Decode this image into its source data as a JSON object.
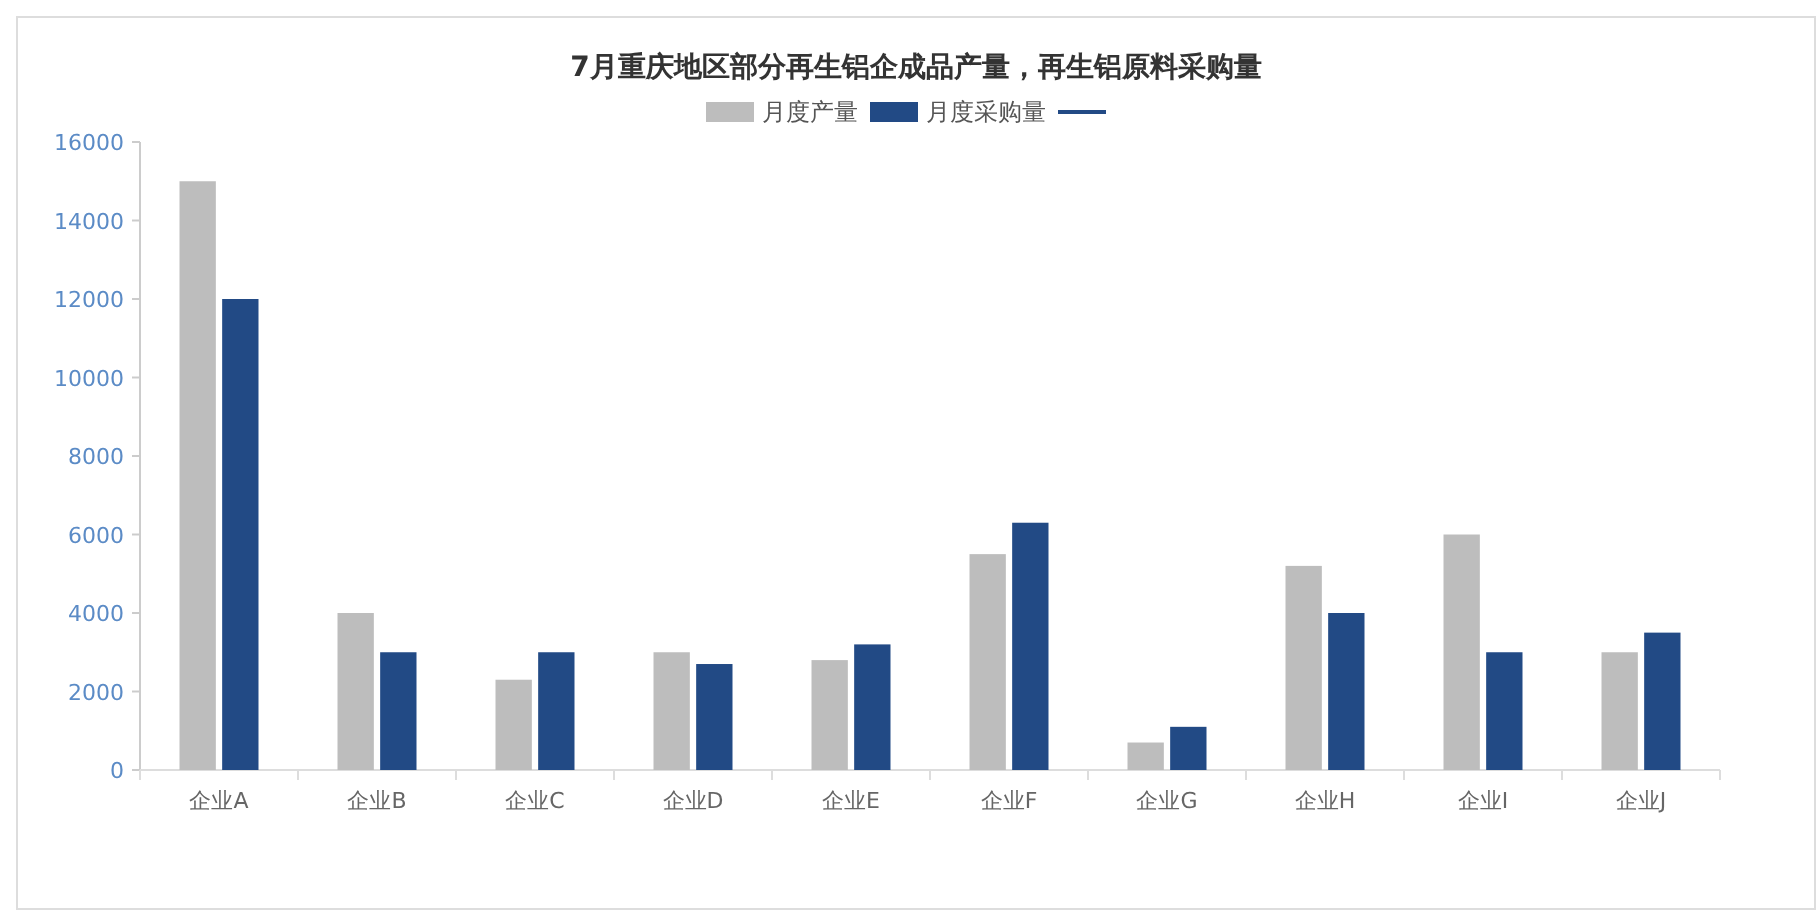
{
  "chart_data": {
    "type": "bar",
    "title": "7月重庆地区部分再生铝企成品产量，再生铝原料采购量",
    "categories": [
      "企业A",
      "企业B",
      "企业C",
      "企业D",
      "企业E",
      "企业F",
      "企业G",
      "企业H",
      "企业I",
      "企业J"
    ],
    "series": [
      {
        "name": "月度产量",
        "color": "#bdbdbd",
        "values": [
          15000,
          4000,
          2300,
          3000,
          2800,
          5500,
          700,
          5200,
          6000,
          3000
        ]
      },
      {
        "name": "月度采购量",
        "color": "#224a85",
        "values": [
          12000,
          3000,
          3000,
          2700,
          3200,
          6300,
          1100,
          4000,
          3000,
          3500
        ]
      },
      {
        "type": "line",
        "color": "#224a85",
        "values": [
          null,
          null,
          null,
          null,
          null,
          null,
          null,
          null,
          null,
          null
        ]
      }
    ],
    "ylim": [
      0,
      16000
    ],
    "yticks": [
      0,
      2000,
      4000,
      6000,
      8000,
      10000,
      12000,
      14000,
      16000
    ],
    "grid": false,
    "legend": "top"
  }
}
